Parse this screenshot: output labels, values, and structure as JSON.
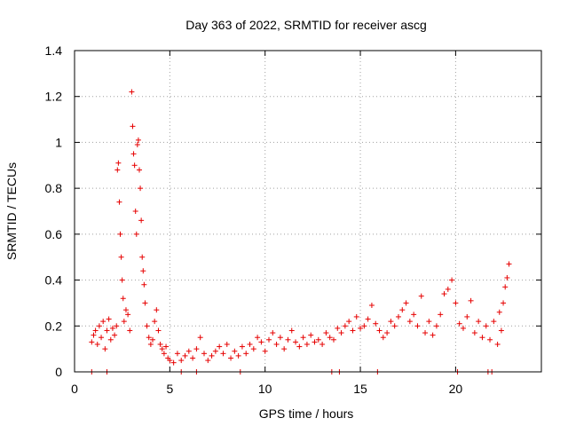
{
  "chart_data": {
    "type": "scatter",
    "title": "Day 363 of 2022, SRMTID for receiver ascg",
    "xlabel": "GPS time / hours",
    "ylabel": "SRMTID / TECUs",
    "xlim": [
      0,
      24.5
    ],
    "ylim": [
      0,
      1.4
    ],
    "x_ticks": [
      0,
      5,
      10,
      15,
      20
    ],
    "x_tick_labels": [
      "0",
      "5",
      "10",
      "15",
      "20"
    ],
    "y_ticks": [
      0,
      0.2,
      0.4,
      0.6,
      0.8,
      1.0,
      1.2,
      1.4
    ],
    "y_tick_labels": [
      "0",
      "0.2",
      "0.4",
      "0.6",
      "0.8",
      "1",
      "1.2",
      "1.4"
    ],
    "grid": true,
    "marker": "+",
    "series_color": "#e60000",
    "series": [
      {
        "name": "SRMTID",
        "points": [
          [
            0.9,
            0.13
          ],
          [
            1.0,
            0.16
          ],
          [
            1.1,
            0.18
          ],
          [
            1.2,
            0.12
          ],
          [
            1.3,
            0.2
          ],
          [
            1.4,
            0.15
          ],
          [
            1.5,
            0.22
          ],
          [
            1.6,
            0.1
          ],
          [
            1.7,
            0.18
          ],
          [
            1.8,
            0.23
          ],
          [
            1.9,
            0.14
          ],
          [
            2.0,
            0.19
          ],
          [
            2.1,
            0.16
          ],
          [
            2.2,
            0.2
          ],
          [
            2.25,
            0.88
          ],
          [
            2.3,
            0.91
          ],
          [
            2.35,
            0.74
          ],
          [
            2.4,
            0.6
          ],
          [
            2.45,
            0.5
          ],
          [
            2.5,
            0.4
          ],
          [
            2.55,
            0.32
          ],
          [
            2.6,
            0.22
          ],
          [
            2.7,
            0.27
          ],
          [
            2.8,
            0.25
          ],
          [
            2.9,
            0.18
          ],
          [
            3.0,
            1.22
          ],
          [
            3.05,
            1.07
          ],
          [
            3.1,
            0.95
          ],
          [
            3.15,
            0.9
          ],
          [
            3.2,
            0.7
          ],
          [
            3.25,
            0.6
          ],
          [
            3.3,
            0.99
          ],
          [
            3.35,
            1.01
          ],
          [
            3.4,
            0.88
          ],
          [
            3.45,
            0.8
          ],
          [
            3.5,
            0.66
          ],
          [
            3.55,
            0.5
          ],
          [
            3.6,
            0.44
          ],
          [
            3.65,
            0.38
          ],
          [
            3.7,
            0.3
          ],
          [
            3.8,
            0.2
          ],
          [
            3.9,
            0.15
          ],
          [
            4.0,
            0.12
          ],
          [
            4.1,
            0.14
          ],
          [
            4.2,
            0.22
          ],
          [
            4.3,
            0.27
          ],
          [
            4.4,
            0.18
          ],
          [
            4.5,
            0.12
          ],
          [
            4.6,
            0.1
          ],
          [
            4.7,
            0.08
          ],
          [
            4.8,
            0.11
          ],
          [
            4.9,
            0.06
          ],
          [
            5.0,
            0.05
          ],
          [
            5.2,
            0.04
          ],
          [
            5.4,
            0.08
          ],
          [
            5.6,
            0.05
          ],
          [
            5.8,
            0.07
          ],
          [
            6.0,
            0.09
          ],
          [
            6.2,
            0.06
          ],
          [
            6.4,
            0.1
          ],
          [
            6.6,
            0.15
          ],
          [
            6.8,
            0.08
          ],
          [
            7.0,
            0.05
          ],
          [
            7.2,
            0.07
          ],
          [
            7.4,
            0.09
          ],
          [
            7.6,
            0.11
          ],
          [
            7.8,
            0.08
          ],
          [
            8.0,
            0.12
          ],
          [
            8.2,
            0.06
          ],
          [
            8.4,
            0.09
          ],
          [
            8.6,
            0.07
          ],
          [
            8.8,
            0.11
          ],
          [
            9.0,
            0.08
          ],
          [
            9.2,
            0.12
          ],
          [
            9.4,
            0.1
          ],
          [
            9.6,
            0.15
          ],
          [
            9.8,
            0.13
          ],
          [
            10.0,
            0.09
          ],
          [
            10.2,
            0.14
          ],
          [
            10.4,
            0.17
          ],
          [
            10.6,
            0.12
          ],
          [
            10.8,
            0.15
          ],
          [
            11.0,
            0.1
          ],
          [
            11.2,
            0.14
          ],
          [
            11.4,
            0.18
          ],
          [
            11.6,
            0.13
          ],
          [
            11.8,
            0.11
          ],
          [
            12.0,
            0.15
          ],
          [
            12.2,
            0.12
          ],
          [
            12.4,
            0.16
          ],
          [
            12.6,
            0.13
          ],
          [
            12.8,
            0.14
          ],
          [
            13.0,
            0.12
          ],
          [
            13.2,
            0.17
          ],
          [
            13.4,
            0.15
          ],
          [
            13.6,
            0.14
          ],
          [
            13.8,
            0.19
          ],
          [
            14.0,
            0.17
          ],
          [
            14.2,
            0.2
          ],
          [
            14.4,
            0.22
          ],
          [
            14.6,
            0.18
          ],
          [
            14.8,
            0.24
          ],
          [
            15.0,
            0.19
          ],
          [
            15.2,
            0.2
          ],
          [
            15.4,
            0.23
          ],
          [
            15.6,
            0.29
          ],
          [
            15.8,
            0.21
          ],
          [
            16.0,
            0.18
          ],
          [
            16.2,
            0.15
          ],
          [
            16.4,
            0.17
          ],
          [
            16.6,
            0.22
          ],
          [
            16.8,
            0.2
          ],
          [
            17.0,
            0.24
          ],
          [
            17.2,
            0.27
          ],
          [
            17.4,
            0.3
          ],
          [
            17.6,
            0.22
          ],
          [
            17.8,
            0.25
          ],
          [
            18.0,
            0.2
          ],
          [
            18.2,
            0.33
          ],
          [
            18.4,
            0.17
          ],
          [
            18.6,
            0.22
          ],
          [
            18.8,
            0.16
          ],
          [
            19.0,
            0.2
          ],
          [
            19.2,
            0.25
          ],
          [
            19.4,
            0.34
          ],
          [
            19.6,
            0.36
          ],
          [
            19.8,
            0.4
          ],
          [
            20.0,
            0.3
          ],
          [
            20.2,
            0.21
          ],
          [
            20.4,
            0.19
          ],
          [
            20.6,
            0.24
          ],
          [
            20.8,
            0.31
          ],
          [
            21.0,
            0.17
          ],
          [
            21.2,
            0.22
          ],
          [
            21.4,
            0.15
          ],
          [
            21.6,
            0.2
          ],
          [
            21.8,
            0.14
          ],
          [
            22.0,
            0.22
          ],
          [
            22.2,
            0.12
          ],
          [
            22.3,
            0.26
          ],
          [
            22.4,
            0.18
          ],
          [
            22.5,
            0.3
          ],
          [
            22.6,
            0.37
          ],
          [
            22.7,
            0.41
          ],
          [
            22.8,
            0.47
          ],
          [
            0.9,
            0.0
          ],
          [
            1.7,
            0.0
          ],
          [
            5.6,
            0.0
          ],
          [
            6.4,
            0.0
          ],
          [
            8.7,
            0.0
          ],
          [
            13.5,
            0.0
          ],
          [
            13.9,
            0.0
          ],
          [
            15.9,
            0.0
          ],
          [
            20.1,
            0.0
          ],
          [
            21.7,
            0.0
          ],
          [
            21.9,
            0.0
          ]
        ]
      }
    ]
  }
}
